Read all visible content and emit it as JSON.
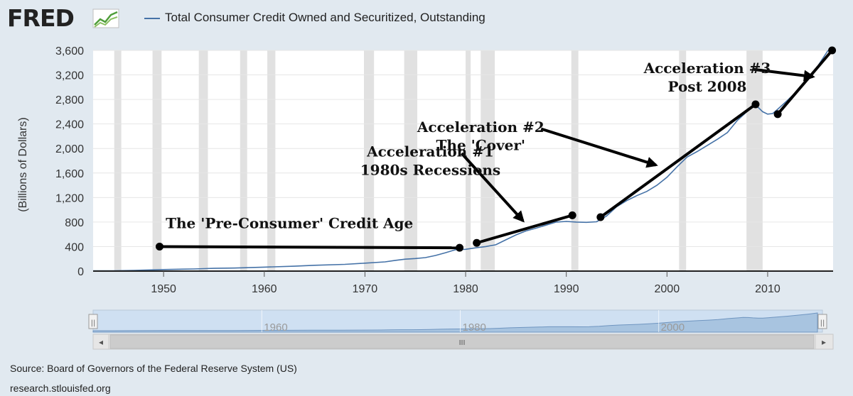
{
  "header": {
    "logo": "FRED",
    "logo_icon": "fred-graph-icon",
    "series_legend": "Total Consumer Credit Owned and Securitized, Outstanding"
  },
  "footer": {
    "source": "Source: Board of Governors of the Federal Reserve System (US)",
    "site": "research.stlouisfed.org"
  },
  "colors": {
    "background": "#e1e9f0",
    "plot_background": "#ffffff",
    "line": "#4572a7",
    "recession": "#e1e1e1",
    "annotation": "#000000",
    "navigator_fill": "#a8c4e0",
    "navigator_mask": "#cfe0f2"
  },
  "chart_data": {
    "type": "line",
    "title": "",
    "xlabel": "",
    "ylabel": "(Billions of Dollars)",
    "xlim": [
      1943,
      2016.5
    ],
    "ylim": [
      0,
      3600
    ],
    "y_ticks": [
      "0",
      "400",
      "800",
      "1,200",
      "1,600",
      "2,000",
      "2,400",
      "2,800",
      "3,200",
      "3,600"
    ],
    "y_tick_values": [
      0,
      400,
      800,
      1200,
      1600,
      2000,
      2400,
      2800,
      3200,
      3600
    ],
    "x_ticks": [
      "1950",
      "1960",
      "1970",
      "1980",
      "1990",
      "2000",
      "2010"
    ],
    "x_tick_values": [
      1950,
      1960,
      1970,
      1980,
      1990,
      2000,
      2010
    ],
    "grid": true,
    "legend": "top",
    "recessions": [
      [
        1945.1,
        1945.8
      ],
      [
        1948.9,
        1949.8
      ],
      [
        1953.5,
        1954.4
      ],
      [
        1957.6,
        1958.3
      ],
      [
        1960.3,
        1961.1
      ],
      [
        1969.9,
        1970.9
      ],
      [
        1973.9,
        1975.2
      ],
      [
        1980.0,
        1980.5
      ],
      [
        1981.5,
        1982.9
      ],
      [
        1990.5,
        1991.2
      ],
      [
        2001.2,
        2001.9
      ],
      [
        2007.9,
        2009.5
      ]
    ],
    "series": [
      {
        "name": "Total Consumer Credit Owned and Securitized, Outstanding",
        "x": [
          1943,
          1945,
          1947,
          1950,
          1953,
          1955,
          1957,
          1960,
          1963,
          1965,
          1968,
          1970,
          1972,
          1973,
          1974,
          1975,
          1976,
          1977,
          1978,
          1979,
          1980,
          1981,
          1982,
          1983,
          1984,
          1985,
          1986,
          1987,
          1988,
          1989,
          1990,
          1991,
          1992,
          1993,
          1994,
          1995,
          1996,
          1997,
          1998,
          1999,
          2000,
          2001,
          2002,
          2003,
          2004,
          2005,
          2006,
          2007,
          2008,
          2008.5,
          2009,
          2009.5,
          2010,
          2010.5,
          2011,
          2012,
          2013,
          2014,
          2015,
          2016
        ],
        "y": [
          5,
          6,
          12,
          25,
          35,
          45,
          50,
          65,
          80,
          95,
          110,
          130,
          150,
          175,
          195,
          205,
          220,
          255,
          300,
          350,
          355,
          380,
          400,
          430,
          510,
          590,
          655,
          700,
          750,
          800,
          810,
          800,
          795,
          805,
          900,
          1050,
          1150,
          1230,
          1300,
          1400,
          1530,
          1700,
          1860,
          1950,
          2050,
          2150,
          2260,
          2460,
          2610,
          2690,
          2680,
          2600,
          2560,
          2570,
          2640,
          2790,
          2950,
          3150,
          3350,
          3600
        ]
      }
    ],
    "annotations": [
      {
        "text": "The 'Pre-Consumer' Credit Age",
        "x": 1962.5,
        "y": 700,
        "anchor": "middle"
      },
      {
        "text": "Acceleration #1",
        "x": 1976.5,
        "y": 1870,
        "anchor": "middle"
      },
      {
        "text": "1980s Recessions",
        "x": 1976.5,
        "y": 1570,
        "anchor": "middle"
      },
      {
        "text": "Acceleration #2",
        "x": 1981.5,
        "y": 2270,
        "anchor": "middle"
      },
      {
        "text": "The 'Cover'",
        "x": 1981.5,
        "y": 1975,
        "anchor": "middle"
      },
      {
        "text": "Acceleration #3",
        "x": 2004,
        "y": 3230,
        "anchor": "middle"
      },
      {
        "text": "Post 2008",
        "x": 2004,
        "y": 2930,
        "anchor": "middle"
      }
    ],
    "segments": [
      {
        "x1": 1949.6,
        "y1": 400,
        "x2": 1979.4,
        "y2": 380
      },
      {
        "x1": 1981.1,
        "y1": 460,
        "x2": 1990.6,
        "y2": 910
      },
      {
        "x1": 1993.4,
        "y1": 880,
        "x2": 2008.8,
        "y2": 2720
      },
      {
        "x1": 2011.0,
        "y1": 2560,
        "x2": 2016.4,
        "y2": 3600
      }
    ],
    "arrows": [
      {
        "x1": 1979.6,
        "y1": 1920,
        "x2": 1985.7,
        "y2": 820
      },
      {
        "x1": 1987.5,
        "y1": 2320,
        "x2": 1998.9,
        "y2": 1730
      },
      {
        "x1": 2008.6,
        "y1": 3290,
        "x2": 2014.5,
        "y2": 3170
      }
    ]
  },
  "navigator": {
    "tick_labels": [
      "1960",
      "1980",
      "2000"
    ],
    "tick_values": [
      1960,
      1980,
      2000
    ],
    "scrollbar_grip": "III",
    "left_arrow": "◂",
    "right_arrow": "▸",
    "handle_grip": "||"
  }
}
